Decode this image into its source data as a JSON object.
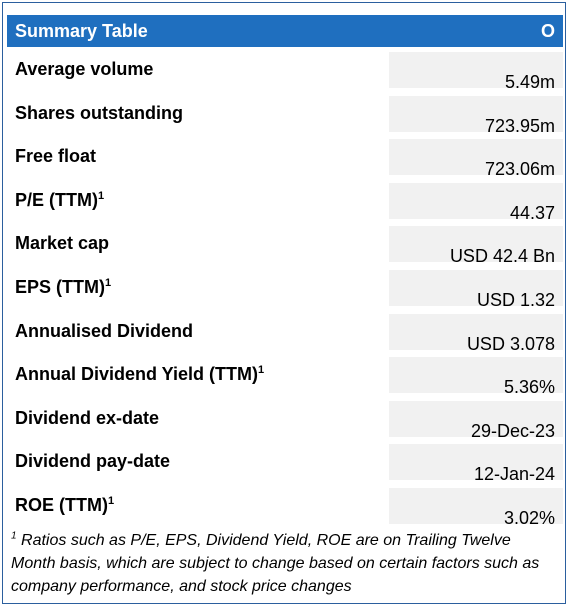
{
  "header": {
    "title": "Summary Table",
    "ticker": "O"
  },
  "rows": [
    {
      "label": "Average volume",
      "sup": "",
      "value": "5.49m"
    },
    {
      "label": "Shares outstanding",
      "sup": "",
      "value": "723.95m"
    },
    {
      "label": "Free float",
      "sup": "",
      "value": "723.06m"
    },
    {
      "label": "P/E (TTM)",
      "sup": "1",
      "value": "44.37"
    },
    {
      "label": "Market cap",
      "sup": "",
      "value": "USD 42.4 Bn"
    },
    {
      "label": "EPS (TTM)",
      "sup": "1",
      "value": "USD 1.32"
    },
    {
      "label": "Annualised Dividend",
      "sup": "",
      "value": "USD 3.078"
    },
    {
      "label": "Annual Dividend Yield (TTM)",
      "sup": "1",
      "value": "5.36%"
    },
    {
      "label": "Dividend ex-date",
      "sup": "",
      "value": "29-Dec-23"
    },
    {
      "label": "Dividend pay-date",
      "sup": "",
      "value": "12-Jan-24"
    },
    {
      "label": "ROE (TTM)",
      "sup": "1",
      "value": "3.02%"
    }
  ],
  "footnote": {
    "marker": "1",
    "text": "Ratios such as P/E, EPS, Dividend Yield, ROE are on Trailing Twelve Month basis, which are subject to change based on certain factors such as company performance, and stock price changes"
  }
}
